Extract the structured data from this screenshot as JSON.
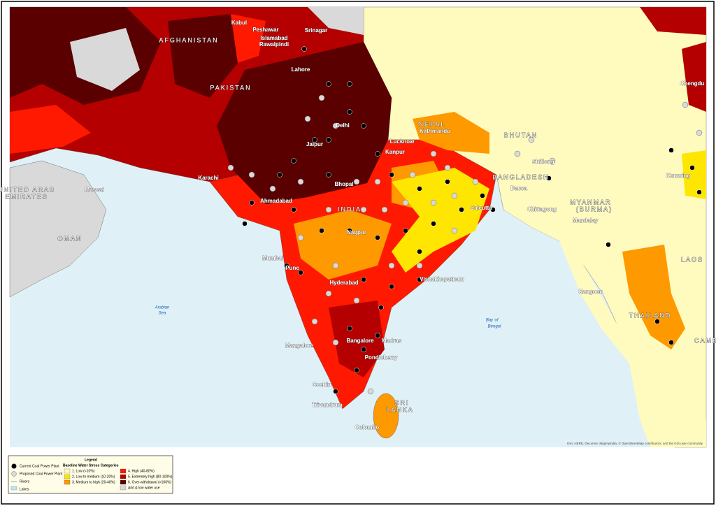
{
  "countries": [
    "AFGHANISTAN",
    "PAKISTAN",
    "INDIA",
    "NEPAL",
    "BHUTAN",
    "BANGLADESH",
    "MYANMAR",
    "(BURMA)",
    "OMAN",
    "SRI",
    "LANKA",
    "THAILAND",
    "LAOS",
    "UNITED ARAB",
    "EMIRATES",
    "CAMB"
  ],
  "cities": [
    "Kabul",
    "Peshawar",
    "Islamabad",
    "Rawalpindi",
    "Srinagar",
    "Karachi",
    "Lahore",
    "Delhi",
    "Jaipur",
    "Lucknow",
    "Kathmandu",
    "Kanpur",
    "Bhopal",
    "Ahmadabad",
    "Nagpur",
    "Mumbai",
    "Pune",
    "Hyderabad",
    "Vishakhapatnam",
    "Calcutta",
    "Dacca",
    "Chittagong",
    "Mandalay",
    "Rangoon",
    "Bangalore",
    "Madras",
    "Cochin",
    "Trivandrum",
    "Colombo",
    "Muscat",
    "Kunming",
    "Chengdu",
    "Shillong",
    "Mangalore",
    "Pondicherry"
  ],
  "water": [
    "Arabian",
    "Sea",
    "Bay",
    "of",
    "Bengal"
  ],
  "attribution": "Esri, HERE, DeLorme, MapmyIndia, © OpenStreetMap contributors, and the GIS user community",
  "legend": {
    "title": "Legend",
    "symbols": [
      "Current Coal Power Plant",
      "Proposed Coal Power Plant",
      "Rivers",
      "Lakes"
    ],
    "categories_title": "Baseline Water Stress Categories",
    "categories": [
      {
        "name": "1. Low (<10%)",
        "color": "#fffbbe"
      },
      {
        "name": "2. Low to medium (10-20%)",
        "color": "#ffe600"
      },
      {
        "name": "3. Medium to high (20-40%)",
        "color": "#ff9900"
      },
      {
        "name": "4. High (40-80%)",
        "color": "#ff1900"
      },
      {
        "name": "5. Extremely high (80-100%)",
        "color": "#b40000"
      },
      {
        "name": "6. Over-withdrawal (>100%)",
        "color": "#5a0000"
      },
      {
        "name": "Arid & low water use",
        "color": "#d9d9d9"
      }
    ]
  }
}
